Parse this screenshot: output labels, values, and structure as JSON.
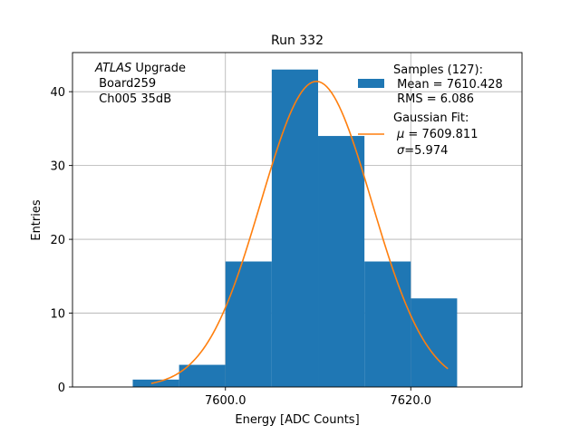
{
  "chart_data": {
    "type": "bar",
    "title": "Run 332",
    "xlabel": "Energy [ADC Counts]",
    "ylabel": "Entries",
    "xlim": [
      7583.5,
      7632.0
    ],
    "ylim": [
      0,
      45.3
    ],
    "grid": true,
    "x_ticks": [
      7600.0,
      7620.0
    ],
    "x_tick_labels": [
      "7600.0",
      "7620.0"
    ],
    "y_ticks": [
      0,
      10,
      20,
      30,
      40
    ],
    "y_tick_labels": [
      "0",
      "10",
      "20",
      "30",
      "40"
    ],
    "bins": [
      {
        "x0": 7590,
        "x1": 7595,
        "count": 1
      },
      {
        "x0": 7595,
        "x1": 7600,
        "count": 3
      },
      {
        "x0": 7600,
        "x1": 7605,
        "count": 17
      },
      {
        "x0": 7605,
        "x1": 7610,
        "count": 43
      },
      {
        "x0": 7610,
        "x1": 7615,
        "count": 34
      },
      {
        "x0": 7615,
        "x1": 7620,
        "count": 17
      },
      {
        "x0": 7620,
        "x1": 7625,
        "count": 12
      }
    ],
    "fit": {
      "type": "gaussian",
      "amplitude": 41.4,
      "mu": 7609.811,
      "sigma": 5.974,
      "x_range": [
        7592,
        7624
      ]
    },
    "colors": {
      "histogram": "#1f77b4",
      "fit": "#ff7f0e"
    },
    "annotation": {
      "line1_italic": "ATLAS",
      "line1_rest": " Upgrade",
      "line2": " Board259",
      "line3": " Ch005 35dB"
    },
    "legend": {
      "placement": "top-right",
      "samples": [
        "Samples (127):",
        " Mean = 7610.428",
        " RMS = 6.086"
      ],
      "fit_title": "Gaussian Fit:",
      "fit_mu_symbol": "μ",
      "fit_mu_rest": " = 7609.811",
      "fit_sigma_symbol": "σ",
      "fit_sigma_rest": "=5.974"
    }
  }
}
